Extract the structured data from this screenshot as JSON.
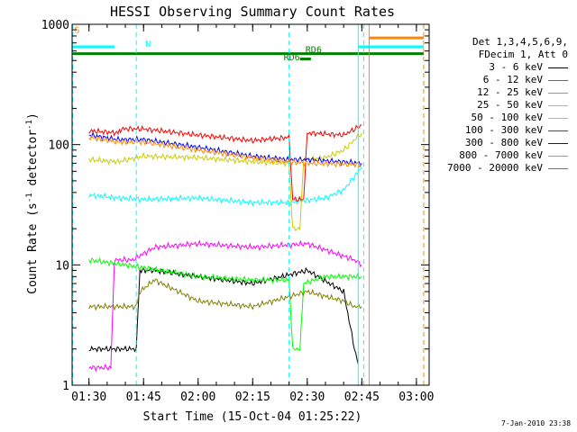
{
  "chart_data": {
    "type": "line",
    "title": "HESSI Observing Summary Count Rates",
    "xlabel": "Start Time (15-Oct-04 01:25:22)",
    "ylabel_main": "Count Rate (s",
    "ylabel_sup1": "-1",
    "ylabel_mid": " detector",
    "ylabel_sup2": "-1",
    "ylabel_end": ")",
    "yscale": "log",
    "ylim": [
      1,
      1000
    ],
    "xlim": [
      "01:25:22",
      "03:03:30"
    ],
    "x_ticks": [
      "01:30",
      "01:45",
      "02:00",
      "02:15",
      "02:30",
      "02:45",
      "03:00"
    ],
    "y_ticks": [
      "1",
      "10",
      "100",
      "1000"
    ],
    "legend_header": [
      "Det 1,3,4,5,6,9,",
      "FDecim 1, Att 0"
    ],
    "legend_position": "right",
    "series": [
      {
        "name": "3 - 6 keV",
        "color": "#000000",
        "x": [
          "01:30",
          "01:40",
          "01:43",
          "01:44",
          "01:48",
          "02:00",
          "02:15",
          "02:30",
          "02:40",
          "02:43",
          "02:44"
        ],
        "y": [
          2,
          2,
          2,
          9,
          9,
          8,
          7,
          9,
          6,
          2,
          1.5
        ]
      },
      {
        "name": "6 - 12 keV",
        "color": "#ff00ff",
        "x": [
          "01:30",
          "01:36",
          "01:37",
          "01:42",
          "01:48",
          "02:00",
          "02:15",
          "02:30",
          "02:43",
          "02:45"
        ],
        "y": [
          1.4,
          1.4,
          11,
          11,
          14,
          15,
          14,
          15,
          11,
          10
        ]
      },
      {
        "name": "12 - 25 keV",
        "color": "#00ff00",
        "x": [
          "01:30",
          "01:40",
          "01:50",
          "02:00",
          "02:15",
          "02:25",
          "02:26",
          "02:28",
          "02:29",
          "02:35",
          "02:45"
        ],
        "y": [
          11,
          10,
          9,
          8,
          7.5,
          7.5,
          2,
          2,
          7,
          8,
          8
        ]
      },
      {
        "name": "25 - 50 keV",
        "color": "#00ffff",
        "x": [
          "01:30",
          "01:38",
          "01:45",
          "02:00",
          "02:15",
          "02:25",
          "02:35",
          "02:40",
          "02:45"
        ],
        "y": [
          38,
          36,
          35,
          36,
          33,
          33,
          36,
          42,
          65
        ]
      },
      {
        "name": "50 - 100 keV",
        "color": "#cccc00",
        "x": [
          "01:30",
          "01:38",
          "01:45",
          "02:00",
          "02:15",
          "02:25",
          "02:26",
          "02:28",
          "02:29",
          "02:35",
          "02:40",
          "02:45"
        ],
        "y": [
          75,
          72,
          80,
          78,
          72,
          70,
          20,
          20,
          75,
          78,
          90,
          125
        ]
      },
      {
        "name": "100 - 300 keV",
        "color": "#ff0000",
        "x": [
          "01:30",
          "01:38",
          "01:39",
          "01:45",
          "02:00",
          "02:15",
          "02:25",
          "02:26",
          "02:29",
          "02:30",
          "02:40",
          "02:45"
        ],
        "y": [
          130,
          125,
          135,
          135,
          120,
          108,
          115,
          35,
          35,
          125,
          120,
          145
        ]
      },
      {
        "name": "300 - 800 keV",
        "color": "#0000ff",
        "x": [
          "01:30",
          "01:38",
          "01:45",
          "02:00",
          "02:15",
          "02:25",
          "02:30",
          "02:45"
        ],
        "y": [
          120,
          110,
          110,
          95,
          80,
          75,
          75,
          70
        ]
      },
      {
        "name": "800 - 7000 keV",
        "color": "#ff8800",
        "x": [
          "01:30",
          "01:38",
          "01:45",
          "02:00",
          "02:15",
          "02:25",
          "02:30",
          "02:45"
        ],
        "y": [
          115,
          105,
          105,
          90,
          78,
          72,
          70,
          68
        ]
      },
      {
        "name": "7000 - 20000 keV",
        "color": "#808000",
        "x": [
          "01:30",
          "01:40",
          "01:43",
          "01:44",
          "01:48",
          "02:00",
          "02:15",
          "02:30",
          "02:40",
          "02:43",
          "02:45"
        ],
        "y": [
          4.5,
          4.5,
          4.5,
          6,
          7.5,
          5,
          4.5,
          6,
          5,
          4.5,
          4.5
        ]
      }
    ],
    "annotations": [
      {
        "text": "S",
        "x": "01:25:30",
        "y": 850,
        "color": "#ff8800"
      },
      {
        "text": "N",
        "x": "01:45",
        "y": 650,
        "color": "#00ffff"
      },
      {
        "text": "RD6",
        "x": "02:23",
        "y": 500,
        "color": "#008000"
      },
      {
        "text": "RD6",
        "x": "02:29",
        "y": 580,
        "color": "#008000"
      }
    ],
    "flag_lines": [
      {
        "label": "S",
        "color": "#ff8800",
        "y": 770,
        "x_start": "02:47",
        "x_end": "03:02"
      },
      {
        "label": "N",
        "color": "#00ffff",
        "y": 650,
        "x_start": "01:25:22",
        "x_end": "01:37"
      },
      {
        "label": "N",
        "color": "#00ffff",
        "y": 650,
        "x_start": "02:44",
        "x_end": "03:02"
      },
      {
        "label": "RD6",
        "color": "#008000",
        "y": 570,
        "x_start": "01:25:22",
        "x_end": "03:02"
      },
      {
        "label": "RD6",
        "color": "#008000",
        "y": 515,
        "x_start": "02:28",
        "x_end": "02:31"
      }
    ],
    "vlines": [
      {
        "x": "01:25:30",
        "color": "#00ffff",
        "style": "dashed"
      },
      {
        "x": "01:43",
        "color": "#00ffff",
        "style": "dashed"
      },
      {
        "x": "02:25",
        "color": "#00ffff",
        "style": "dashed"
      },
      {
        "x": "02:44",
        "color": "#00ffff",
        "style": "solid"
      },
      {
        "x": "02:45:30",
        "color": "#00ffff",
        "style": "dashed"
      },
      {
        "x": "02:47",
        "color": "#ff8800",
        "style": "solid"
      },
      {
        "x": "03:02",
        "color": "#ff8800",
        "style": "dashed"
      }
    ]
  },
  "timestamp": "7-Jan-2010 23:38"
}
